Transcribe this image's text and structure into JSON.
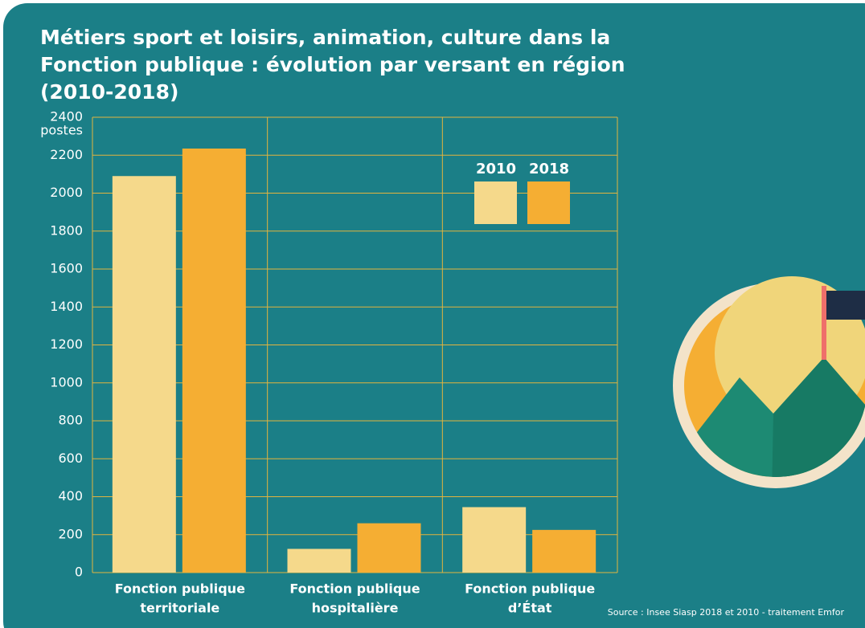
{
  "chart_data": {
    "type": "bar",
    "title": "Métiers sport et loisirs, animation, culture dans la Fonction publique : évolution par versant en région (2010-2018)",
    "y_label": "postes",
    "categories": [
      [
        "Fonction publique",
        "territoriale"
      ],
      [
        "Fonction publique",
        "hospitalière"
      ],
      [
        "Fonction publique",
        "d’État"
      ]
    ],
    "series": [
      {
        "name": "2010",
        "color": "#f5d98b",
        "values": [
          2090,
          125,
          345
        ]
      },
      {
        "name": "2018",
        "color": "#f5ae33",
        "values": [
          2235,
          260,
          225
        ]
      }
    ],
    "ylim": [
      0,
      2400
    ],
    "yticks": [
      0,
      200,
      400,
      600,
      800,
      1000,
      1200,
      1400,
      1600,
      1800,
      2000,
      2200,
      2400
    ],
    "grid": true,
    "source": "Source : Insee Siasp 2018 et 2010 - traitement Emfor"
  }
}
